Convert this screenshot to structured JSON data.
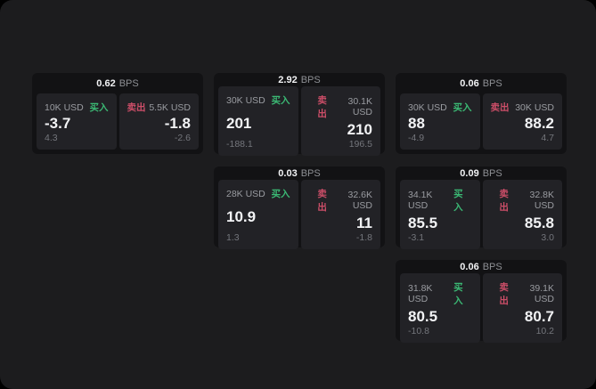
{
  "colors": {
    "page_bg": "#1c1c1e",
    "card_bg": "#121214",
    "panel_bg": "#222226",
    "text_bright": "#f2f3f5",
    "text_dim": "#8e9095",
    "text_label": "#9a9ca1",
    "text_sub": "#74767c",
    "buy": "#3bb974",
    "sell": "#cc4e68"
  },
  "labels": {
    "bps_unit": "BPS",
    "buy": "买入",
    "sell": "卖出"
  },
  "cards": [
    {
      "row": 1,
      "col": 1,
      "bps": "0.62",
      "buy": {
        "amount": "10K USD",
        "side": "买入",
        "value": "-3.7",
        "sub": "4.3"
      },
      "sell": {
        "amount": "5.5K USD",
        "side": "卖出",
        "value": "-1.8",
        "sub": "-2.6"
      }
    },
    {
      "row": 1,
      "col": 2,
      "bps": "2.92",
      "buy": {
        "amount": "30K USD",
        "side": "买入",
        "value": "201",
        "sub": "-188.1"
      },
      "sell": {
        "amount": "30.1K USD",
        "side": "卖出",
        "value": "210",
        "sub": "196.5"
      }
    },
    {
      "row": 1,
      "col": 3,
      "bps": "0.06",
      "buy": {
        "amount": "30K USD",
        "side": "买入",
        "value": "88",
        "sub": "-4.9"
      },
      "sell": {
        "amount": "30K USD",
        "side": "卖出",
        "value": "88.2",
        "sub": "4.7"
      }
    },
    {
      "row": 2,
      "col": 2,
      "bps": "0.03",
      "buy": {
        "amount": "28K USD",
        "side": "买入",
        "value": "10.9",
        "sub": "1.3"
      },
      "sell": {
        "amount": "32.6K USD",
        "side": "卖出",
        "value": "11",
        "sub": "-1.8"
      }
    },
    {
      "row": 2,
      "col": 3,
      "bps": "0.09",
      "buy": {
        "amount": "34.1K USD",
        "side": "买入",
        "value": "85.5",
        "sub": "-3.1"
      },
      "sell": {
        "amount": "32.8K USD",
        "side": "卖出",
        "value": "85.8",
        "sub": "3.0"
      }
    },
    {
      "row": 3,
      "col": 3,
      "bps": "0.06",
      "buy": {
        "amount": "31.8K USD",
        "side": "买入",
        "value": "80.5",
        "sub": "-10.8"
      },
      "sell": {
        "amount": "39.1K USD",
        "side": "卖出",
        "value": "80.7",
        "sub": "10.2"
      }
    }
  ]
}
